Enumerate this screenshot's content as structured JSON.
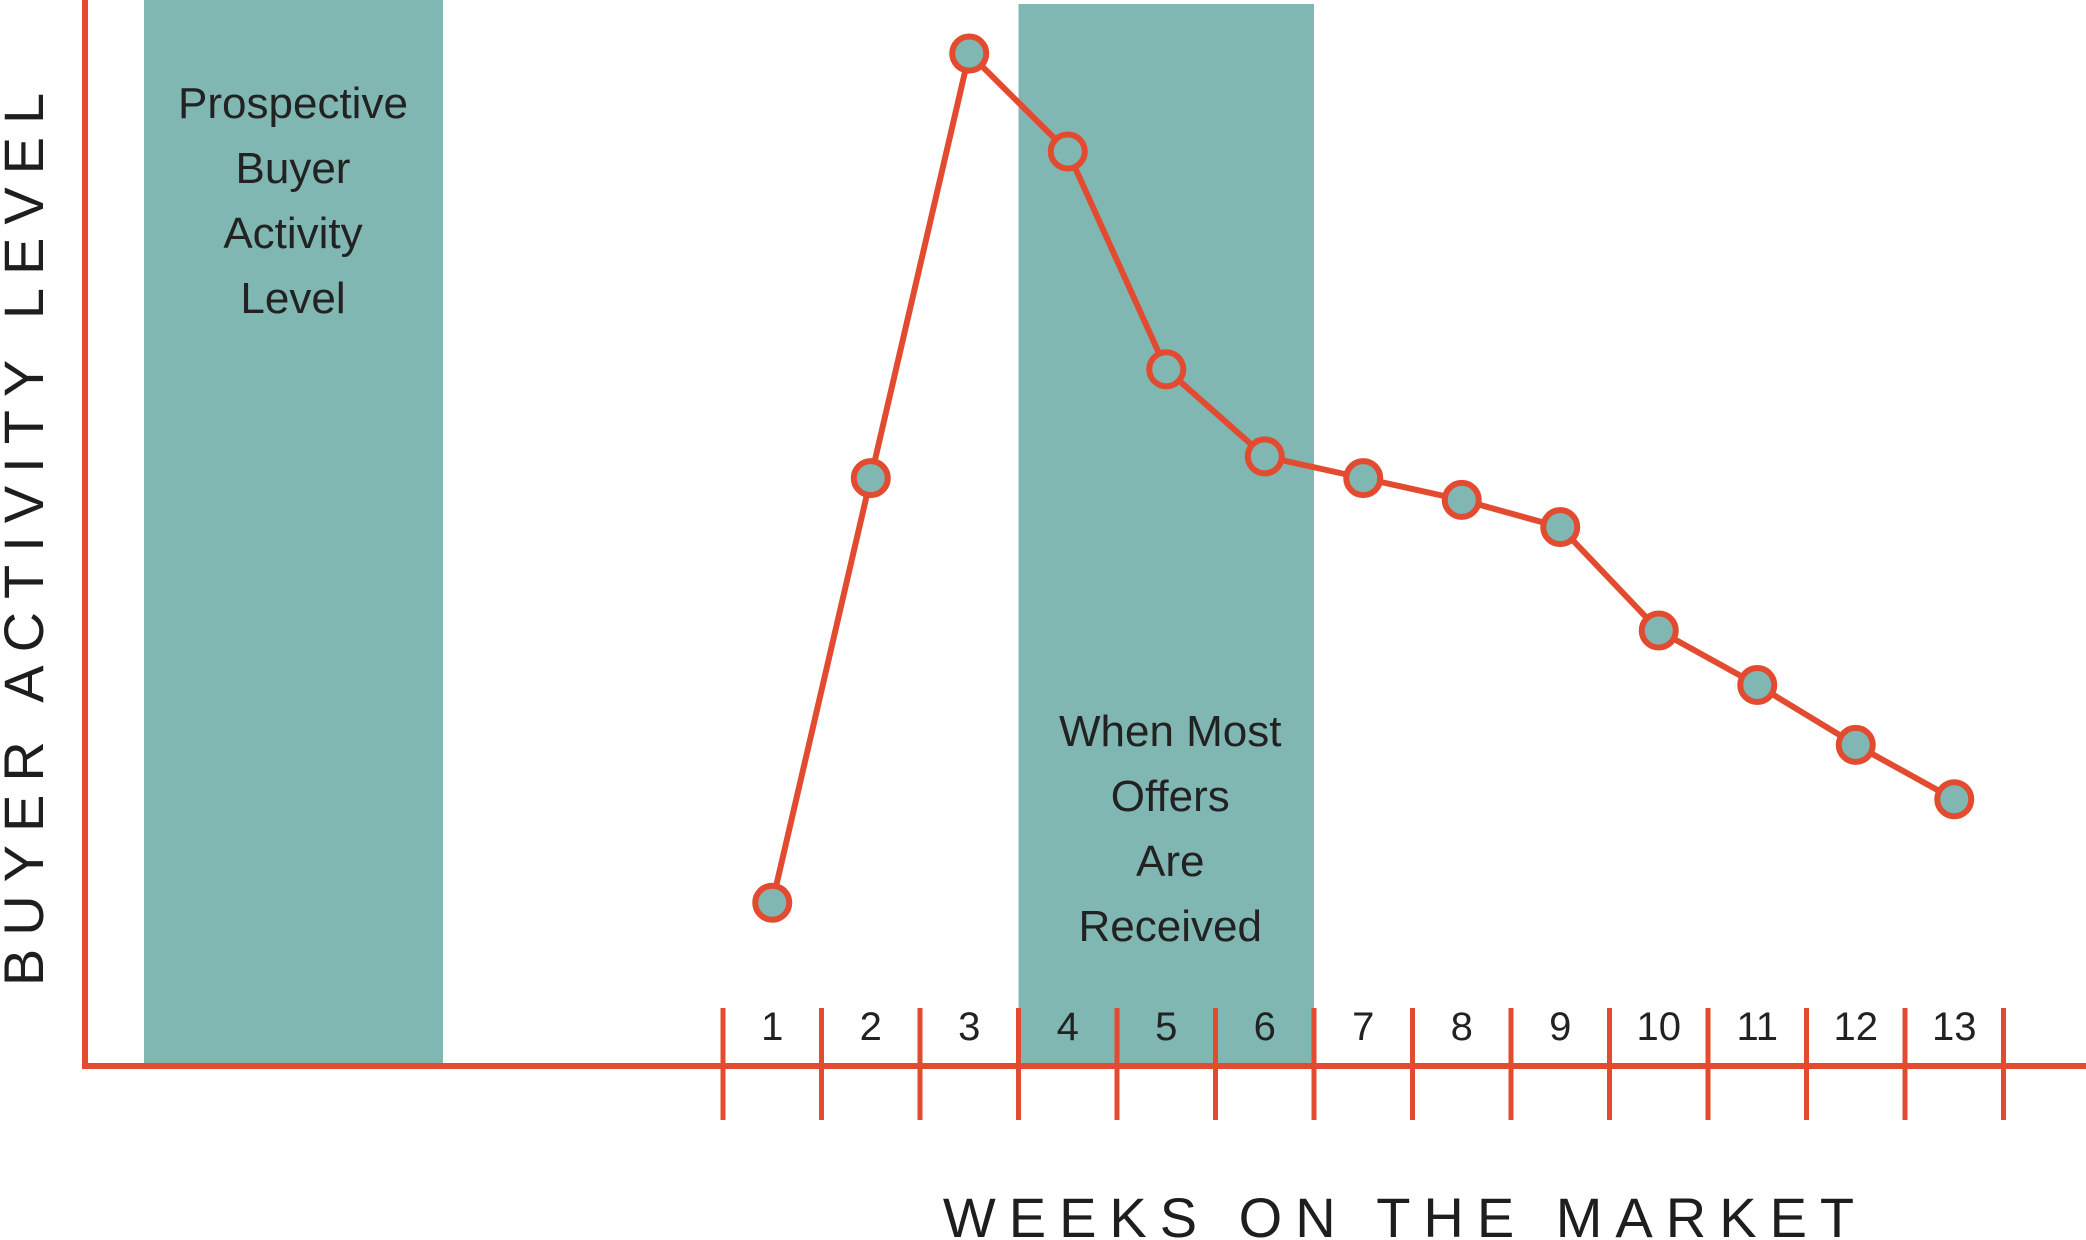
{
  "chart_data": {
    "type": "line",
    "title": "",
    "xlabel": "WEEKS ON THE MARKET",
    "ylabel": "BUYER ACTIVITY LEVEL",
    "categories": [
      "1",
      "2",
      "3",
      "4",
      "5",
      "6",
      "7",
      "8",
      "9",
      "10",
      "11",
      "12",
      "13"
    ],
    "values": [
      1.5,
      5.4,
      9.3,
      8.4,
      6.4,
      5.6,
      5.4,
      5.2,
      4.95,
      4.0,
      3.5,
      2.95,
      2.45
    ],
    "ylim": [
      0,
      9.7
    ],
    "grid": false,
    "legend": "none",
    "colors": {
      "line": "#e24b2f",
      "axis": "#e24b2f",
      "marker_fill": "#80b7b2",
      "band": "#80b7b2",
      "text": "#222222"
    },
    "annotations": {
      "legend_box": [
        "Prospective",
        "Buyer",
        "Activity",
        "Level"
      ],
      "offer_band": [
        "When Most",
        "Offers",
        "Are",
        "Received"
      ],
      "offer_band_weeks": [
        4,
        6
      ]
    }
  }
}
